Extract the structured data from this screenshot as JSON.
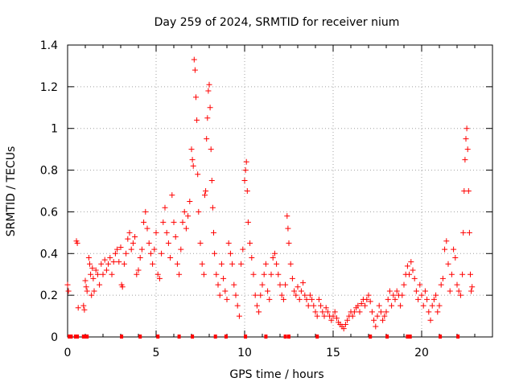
{
  "chart_data": {
    "type": "scatter",
    "title": "Day 259 of 2024, SRMTID for receiver nium",
    "xlabel": "GPS time / hours",
    "ylabel": "SRMTID / TECUs",
    "xlim": [
      0,
      24
    ],
    "ylim": [
      0,
      1.4
    ],
    "xticks": [
      0,
      5,
      10,
      15,
      20
    ],
    "yticks": [
      0,
      0.2,
      0.4,
      0.6,
      0.8,
      1,
      1.2,
      1.4
    ],
    "xtick_labels": [
      "0",
      "5",
      "10",
      "15",
      "20"
    ],
    "ytick_labels": [
      "0",
      "0.2",
      "0.4",
      "0.6",
      "0.8",
      "1",
      "1.2",
      "1.4"
    ],
    "grid": true,
    "marker": "+",
    "color": "#ff0000",
    "series": [
      {
        "name": "SRMTID",
        "points": [
          [
            0.0,
            0.25
          ],
          [
            0.05,
            0.22
          ],
          [
            0.5,
            0.46
          ],
          [
            0.55,
            0.45
          ],
          [
            0.6,
            0.14
          ],
          [
            0.9,
            0.15
          ],
          [
            0.95,
            0.13
          ],
          [
            1.0,
            0.27
          ],
          [
            1.05,
            0.24
          ],
          [
            1.1,
            0.22
          ],
          [
            1.2,
            0.38
          ],
          [
            1.25,
            0.35
          ],
          [
            1.3,
            0.3
          ],
          [
            1.35,
            0.2
          ],
          [
            1.4,
            0.33
          ],
          [
            1.45,
            0.28
          ],
          [
            1.5,
            0.22
          ],
          [
            1.6,
            0.32
          ],
          [
            1.7,
            0.3
          ],
          [
            1.8,
            0.25
          ],
          [
            1.9,
            0.35
          ],
          [
            2.0,
            0.3
          ],
          [
            2.1,
            0.37
          ],
          [
            2.2,
            0.32
          ],
          [
            2.3,
            0.35
          ],
          [
            2.4,
            0.38
          ],
          [
            2.5,
            0.3
          ],
          [
            2.6,
            0.36
          ],
          [
            2.7,
            0.4
          ],
          [
            2.8,
            0.42
          ],
          [
            2.9,
            0.36
          ],
          [
            3.0,
            0.43
          ],
          [
            3.05,
            0.25
          ],
          [
            3.1,
            0.24
          ],
          [
            3.2,
            0.35
          ],
          [
            3.3,
            0.4
          ],
          [
            3.4,
            0.47
          ],
          [
            3.5,
            0.5
          ],
          [
            3.6,
            0.42
          ],
          [
            3.7,
            0.45
          ],
          [
            3.8,
            0.48
          ],
          [
            3.9,
            0.3
          ],
          [
            4.0,
            0.32
          ],
          [
            4.1,
            0.38
          ],
          [
            4.2,
            0.42
          ],
          [
            4.3,
            0.55
          ],
          [
            4.4,
            0.6
          ],
          [
            4.5,
            0.52
          ],
          [
            4.6,
            0.45
          ],
          [
            4.7,
            0.4
          ],
          [
            4.8,
            0.35
          ],
          [
            4.9,
            0.42
          ],
          [
            5.0,
            0.5
          ],
          [
            5.1,
            0.3
          ],
          [
            5.2,
            0.28
          ],
          [
            5.3,
            0.4
          ],
          [
            5.4,
            0.55
          ],
          [
            5.5,
            0.62
          ],
          [
            5.6,
            0.5
          ],
          [
            5.7,
            0.45
          ],
          [
            5.8,
            0.38
          ],
          [
            5.9,
            0.68
          ],
          [
            6.0,
            0.55
          ],
          [
            6.1,
            0.48
          ],
          [
            6.2,
            0.35
          ],
          [
            6.3,
            0.3
          ],
          [
            6.4,
            0.42
          ],
          [
            6.5,
            0.55
          ],
          [
            6.6,
            0.6
          ],
          [
            6.7,
            0.52
          ],
          [
            6.8,
            0.58
          ],
          [
            6.9,
            0.65
          ],
          [
            7.0,
            0.9
          ],
          [
            7.05,
            0.85
          ],
          [
            7.1,
            0.82
          ],
          [
            7.15,
            1.33
          ],
          [
            7.2,
            1.28
          ],
          [
            7.25,
            1.15
          ],
          [
            7.3,
            1.04
          ],
          [
            7.35,
            0.78
          ],
          [
            7.4,
            0.6
          ],
          [
            7.5,
            0.45
          ],
          [
            7.6,
            0.35
          ],
          [
            7.7,
            0.3
          ],
          [
            7.75,
            0.68
          ],
          [
            7.8,
            0.7
          ],
          [
            7.85,
            0.95
          ],
          [
            7.9,
            1.05
          ],
          [
            7.95,
            1.18
          ],
          [
            8.0,
            1.21
          ],
          [
            8.05,
            1.1
          ],
          [
            8.1,
            0.9
          ],
          [
            8.15,
            0.75
          ],
          [
            8.2,
            0.62
          ],
          [
            8.25,
            0.5
          ],
          [
            8.3,
            0.4
          ],
          [
            8.4,
            0.3
          ],
          [
            8.5,
            0.25
          ],
          [
            8.6,
            0.2
          ],
          [
            8.7,
            0.35
          ],
          [
            8.8,
            0.28
          ],
          [
            8.9,
            0.22
          ],
          [
            9.0,
            0.18
          ],
          [
            9.1,
            0.45
          ],
          [
            9.2,
            0.4
          ],
          [
            9.3,
            0.35
          ],
          [
            9.4,
            0.25
          ],
          [
            9.5,
            0.2
          ],
          [
            9.6,
            0.15
          ],
          [
            9.7,
            0.1
          ],
          [
            9.8,
            0.35
          ],
          [
            9.9,
            0.42
          ],
          [
            10.0,
            0.75
          ],
          [
            10.05,
            0.8
          ],
          [
            10.1,
            0.84
          ],
          [
            10.15,
            0.7
          ],
          [
            10.2,
            0.55
          ],
          [
            10.3,
            0.45
          ],
          [
            10.4,
            0.38
          ],
          [
            10.5,
            0.3
          ],
          [
            10.6,
            0.2
          ],
          [
            10.7,
            0.15
          ],
          [
            10.8,
            0.12
          ],
          [
            10.9,
            0.2
          ],
          [
            11.0,
            0.25
          ],
          [
            11.1,
            0.3
          ],
          [
            11.2,
            0.35
          ],
          [
            11.3,
            0.22
          ],
          [
            11.4,
            0.18
          ],
          [
            11.5,
            0.3
          ],
          [
            11.6,
            0.38
          ],
          [
            11.7,
            0.4
          ],
          [
            11.8,
            0.35
          ],
          [
            11.9,
            0.3
          ],
          [
            12.0,
            0.25
          ],
          [
            12.1,
            0.2
          ],
          [
            12.2,
            0.18
          ],
          [
            12.3,
            0.25
          ],
          [
            12.4,
            0.58
          ],
          [
            12.45,
            0.52
          ],
          [
            12.5,
            0.45
          ],
          [
            12.6,
            0.35
          ],
          [
            12.7,
            0.28
          ],
          [
            12.8,
            0.22
          ],
          [
            12.9,
            0.2
          ],
          [
            13.0,
            0.24
          ],
          [
            13.1,
            0.18
          ],
          [
            13.2,
            0.22
          ],
          [
            13.3,
            0.26
          ],
          [
            13.4,
            0.2
          ],
          [
            13.5,
            0.18
          ],
          [
            13.6,
            0.15
          ],
          [
            13.7,
            0.2
          ],
          [
            13.8,
            0.18
          ],
          [
            13.9,
            0.15
          ],
          [
            14.0,
            0.12
          ],
          [
            14.1,
            0.1
          ],
          [
            14.2,
            0.18
          ],
          [
            14.3,
            0.15
          ],
          [
            14.4,
            0.12
          ],
          [
            14.5,
            0.1
          ],
          [
            14.6,
            0.14
          ],
          [
            14.7,
            0.12
          ],
          [
            14.8,
            0.1
          ],
          [
            14.9,
            0.08
          ],
          [
            15.0,
            0.1
          ],
          [
            15.1,
            0.12
          ],
          [
            15.2,
            0.09
          ],
          [
            15.3,
            0.07
          ],
          [
            15.4,
            0.06
          ],
          [
            15.5,
            0.05
          ],
          [
            15.6,
            0.04
          ],
          [
            15.7,
            0.06
          ],
          [
            15.8,
            0.08
          ],
          [
            15.9,
            0.1
          ],
          [
            16.0,
            0.12
          ],
          [
            16.1,
            0.1
          ],
          [
            16.2,
            0.12
          ],
          [
            16.3,
            0.14
          ],
          [
            16.4,
            0.15
          ],
          [
            16.5,
            0.12
          ],
          [
            16.6,
            0.16
          ],
          [
            16.7,
            0.18
          ],
          [
            16.8,
            0.15
          ],
          [
            16.9,
            0.18
          ],
          [
            17.0,
            0.2
          ],
          [
            17.1,
            0.17
          ],
          [
            17.2,
            0.12
          ],
          [
            17.3,
            0.08
          ],
          [
            17.4,
            0.05
          ],
          [
            17.5,
            0.1
          ],
          [
            17.6,
            0.15
          ],
          [
            17.7,
            0.12
          ],
          [
            17.8,
            0.08
          ],
          [
            17.9,
            0.1
          ],
          [
            18.0,
            0.12
          ],
          [
            18.1,
            0.18
          ],
          [
            18.2,
            0.22
          ],
          [
            18.3,
            0.15
          ],
          [
            18.4,
            0.2
          ],
          [
            18.5,
            0.18
          ],
          [
            18.6,
            0.22
          ],
          [
            18.7,
            0.2
          ],
          [
            18.8,
            0.15
          ],
          [
            18.9,
            0.2
          ],
          [
            19.0,
            0.25
          ],
          [
            19.1,
            0.3
          ],
          [
            19.2,
            0.34
          ],
          [
            19.3,
            0.3
          ],
          [
            19.4,
            0.36
          ],
          [
            19.5,
            0.32
          ],
          [
            19.6,
            0.28
          ],
          [
            19.7,
            0.22
          ],
          [
            19.8,
            0.18
          ],
          [
            19.9,
            0.25
          ],
          [
            20.0,
            0.2
          ],
          [
            20.1,
            0.15
          ],
          [
            20.2,
            0.22
          ],
          [
            20.3,
            0.18
          ],
          [
            20.4,
            0.12
          ],
          [
            20.5,
            0.08
          ],
          [
            20.6,
            0.15
          ],
          [
            20.7,
            0.18
          ],
          [
            20.8,
            0.2
          ],
          [
            20.9,
            0.12
          ],
          [
            21.0,
            0.15
          ],
          [
            21.1,
            0.25
          ],
          [
            21.2,
            0.28
          ],
          [
            21.3,
            0.42
          ],
          [
            21.4,
            0.46
          ],
          [
            21.5,
            0.35
          ],
          [
            21.6,
            0.22
          ],
          [
            21.7,
            0.3
          ],
          [
            21.8,
            0.42
          ],
          [
            21.9,
            0.38
          ],
          [
            22.0,
            0.25
          ],
          [
            22.1,
            0.22
          ],
          [
            22.2,
            0.2
          ],
          [
            22.3,
            0.3
          ],
          [
            22.35,
            0.5
          ],
          [
            22.4,
            0.7
          ],
          [
            22.45,
            0.85
          ],
          [
            22.5,
            0.95
          ],
          [
            22.55,
            1.0
          ],
          [
            22.6,
            0.9
          ],
          [
            22.65,
            0.7
          ],
          [
            22.7,
            0.5
          ],
          [
            22.75,
            0.3
          ],
          [
            22.8,
            0.22
          ],
          [
            22.85,
            0.24
          ]
        ]
      }
    ],
    "bottom_markers_x": [
      0.1,
      0.2,
      0.45,
      0.55,
      0.9,
      1.0,
      1.1,
      3.05,
      4.1,
      5.1,
      6.3,
      7.05,
      8.35,
      8.95,
      10.05,
      11.2,
      12.3,
      12.5,
      14.1,
      17.1,
      18.05,
      19.2,
      19.35,
      21.05,
      22.05
    ]
  }
}
